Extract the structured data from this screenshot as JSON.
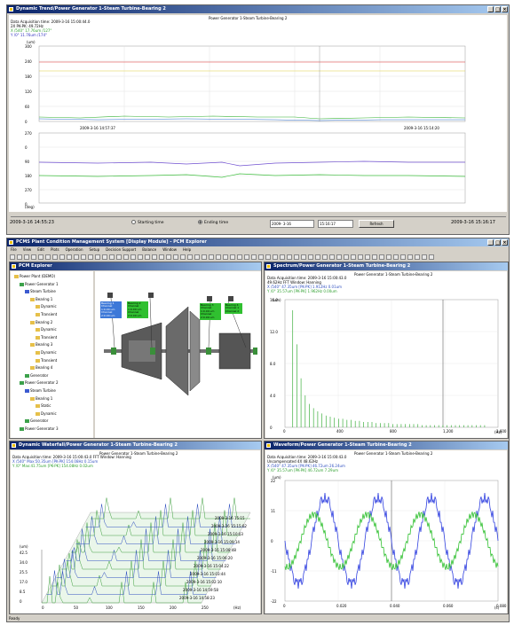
{
  "trend_window": {
    "title": "Dynamic Trend/Power Generator 1-Steam Turbine-Bearing 2",
    "chart_title": "Power Generator 1-Steam Turbine-Bearing 2",
    "info_line1": "Data Acquisition time: 2009-3-16 15:00:44.0",
    "info_line2": "2X   PK-PK:   49.72Hz",
    "info_line3": "X  /540°  17.76um  /127°",
    "info_line4": "Y  /0°  11.76um  /174°",
    "top_unit": "(um)",
    "top_ticks": [
      "300",
      "240",
      "180",
      "120",
      "60",
      "0"
    ],
    "left_time": "2009-3-16 14:57:37",
    "right_time": "2009-3-16 15:14:20",
    "bottom_ticks": [
      "270",
      "0",
      "90",
      "180",
      "270",
      "0"
    ],
    "bottom_unit": "(deg)",
    "start_label": "2009-3-16 14:55:23",
    "end_label": "2009-3-16 15:16:17",
    "radio_start": "Starting time",
    "radio_end": "Ending time",
    "date_value": "2009- 3-16",
    "time_value": "15:16:17",
    "refresh_label": "Refresh",
    "colors": {
      "red": "#e03030",
      "yellow": "#e0d040",
      "green": "#30b030",
      "blue": "#4040e0",
      "purple": "#8040c0"
    }
  },
  "main_window": {
    "title": "PCMS Plant Condition Management System [Display Module] - PCM Explorer",
    "menu": [
      "File",
      "View",
      "Edit",
      "Plots",
      "Operation",
      "Setup",
      "Decision Support",
      "Balance",
      "Window",
      "Help"
    ],
    "status": "Ready"
  },
  "explorer": {
    "title": "PCM Explorer",
    "tree": [
      {
        "label": "Power Plant (DEMO)",
        "icon": "plant-icon"
      },
      {
        "label": "Power Generator 1",
        "icon": "generator-icon"
      },
      {
        "label": "Steam Turbine",
        "icon": "turbine-icon"
      },
      {
        "label": "Bearing 1",
        "icon": "bearing-icon"
      },
      {
        "label": "Dynamic",
        "icon": "signal-icon"
      },
      {
        "label": "Transient",
        "icon": "signal-icon"
      },
      {
        "label": "Bearing 2",
        "icon": "bearing-icon"
      },
      {
        "label": "Dynamic",
        "icon": "signal-icon"
      },
      {
        "label": "Transient",
        "icon": "signal-icon"
      },
      {
        "label": "Bearing 3",
        "icon": "bearing-icon"
      },
      {
        "label": "Dynamic",
        "icon": "signal-icon"
      },
      {
        "label": "Transient",
        "icon": "signal-icon"
      },
      {
        "label": "Bearing 4",
        "icon": "bearing-icon"
      },
      {
        "label": "Generator",
        "icon": "generator-icon"
      },
      {
        "label": "Power Generator 2",
        "icon": "generator-icon"
      },
      {
        "label": "Steam Turbine",
        "icon": "turbine-icon"
      },
      {
        "label": "Bearing 1",
        "icon": "bearing-icon"
      },
      {
        "label": "Static",
        "icon": "signal-icon"
      },
      {
        "label": "Dynamic",
        "icon": "signal-icon"
      },
      {
        "label": "Generator",
        "icon": "generator-icon"
      },
      {
        "label": "Power Generator 3",
        "icon": "generator-icon"
      }
    ],
    "bearing_a": [
      "Bearing 1",
      "Channel 1:0.00 um",
      "Channel 2:0.00 um"
    ],
    "bearing_b": [
      "Bearing 2",
      "Channel 1:0.00 um",
      "Channel 2:0.00 um"
    ],
    "bearing_c": [
      "Bearing 3",
      "Channel 1:0.00 um",
      "Channel 2:0.00 um"
    ],
    "bearing_d": [
      "Bearing 4",
      "Channel 1",
      "Channel 2"
    ]
  },
  "spectrum_window": {
    "title": "Spectrum/Power Generator 1-Steam Turbine-Bearing 2",
    "chart_title": "Power Generator 1-Steam Turbine-Bearing 2",
    "info1": "Data Acquisition time: 2009-3-16 15:00:43.0",
    "info2": "49.62Hz      FFT Window: Hanning",
    "info3": "X  /540°  47.35um [PK-PK]   1.912Hz   0.01um",
    "info4": "Y  /0°  35.57um [PK-PK]   1.962Hz   0.00um",
    "unit": "(um)",
    "yticks": [
      "16.0",
      "12.0",
      "8.0",
      "4.0",
      "0"
    ],
    "xticks": [
      "0",
      "400",
      "800",
      "1,200",
      "1,600"
    ],
    "xunit": "(Hz)"
  },
  "waterfall_window": {
    "title": "Dynamic Waterfall/Power Generator 1-Steam Turbine-Bearing 2",
    "chart_title": "Power Generator 1-Steam Turbine-Bearing 2",
    "info1": "Data Acquisition time: 2009-3-16 15:00:43.0      FFT Window: Hanning",
    "info2": "X  /540°  Max:50.35um [PK-PK]   154.08Hz   0.15um",
    "info3": "Y  /0°  Max:41.75um [PK-PK]   154.08Hz   0.02um",
    "unit": "(um)",
    "yticks": [
      "42.5",
      "34.0",
      "25.5",
      "17.0",
      "8.5",
      "0"
    ],
    "xticks": [
      "0",
      "50",
      "100",
      "150",
      "200",
      "250",
      "(Hz)"
    ],
    "times": [
      "2009-3-16 15:15",
      "2009-3-16 15:15:02",
      "2009-3-16 15:10:03",
      "2009-3-16 15:09:14",
      "2009-3-16 15:08:48",
      "2009-3-16 15:06:20",
      "2009-3-16 15:04:22",
      "2009-3-16 15:03:44",
      "2009-3-16 15:02:10",
      "2009-3-16 14:59:58",
      "2009-3-16 14:58:23"
    ]
  },
  "waveform_window": {
    "title": "Waveform/Power Generator 1-Steam Turbine-Bearing 2",
    "chart_title": "Power Generator 1-Steam Turbine-Bearing 2",
    "info1": "Data Acquisition time: 2009-3-16 15:00:43.0",
    "info2": "Uncompensated      4X  48.62Hz",
    "info3": "X  /540°  47.35um [PK-PK]    46.72um    26.24um",
    "info4": "Y  /0°  35.57um [PK-PK]    46.72um    7.29um",
    "unit": "(um)",
    "yticks": [
      "22",
      "11",
      "0",
      "-11",
      "-22"
    ],
    "xticks": [
      "0",
      "0.020",
      "0.040",
      "0.060",
      "0.080"
    ],
    "xunit": "(s)"
  }
}
